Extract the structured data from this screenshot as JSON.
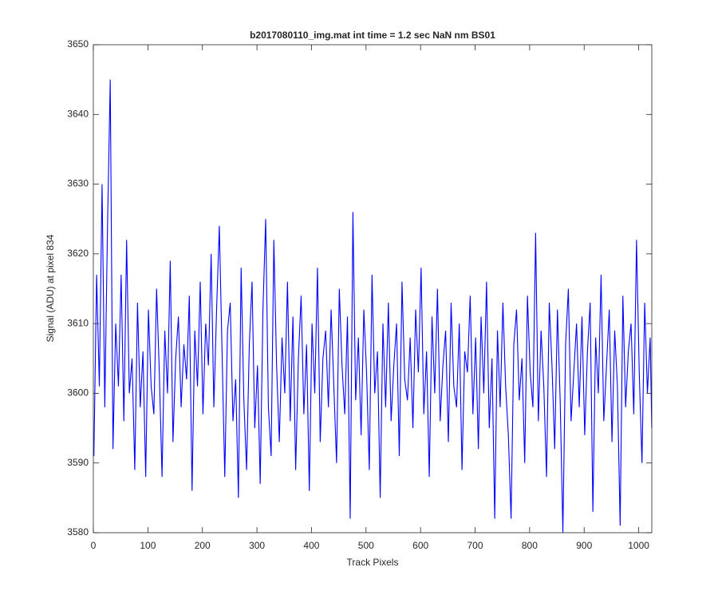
{
  "chart_data": {
    "type": "line",
    "title": "b2017080110_img.mat int time = 1.2 sec  NaN nm BS01",
    "xlabel": "Track Pixels",
    "ylabel": "Signal (ADU) at pixel 834",
    "xlim": [
      0,
      1024
    ],
    "ylim": [
      3580,
      3650
    ],
    "xticks": [
      0,
      100,
      200,
      300,
      400,
      500,
      600,
      700,
      800,
      900,
      1000
    ],
    "yticks": [
      3580,
      3590,
      3600,
      3610,
      3620,
      3630,
      3640,
      3650
    ],
    "x": [
      1,
      6,
      11,
      16,
      21,
      26,
      31,
      36,
      41,
      46,
      51,
      56,
      61,
      66,
      71,
      76,
      81,
      86,
      91,
      96,
      101,
      106,
      111,
      116,
      121,
      126,
      131,
      136,
      141,
      146,
      151,
      156,
      161,
      166,
      171,
      176,
      181,
      186,
      191,
      196,
      201,
      206,
      211,
      216,
      221,
      226,
      231,
      236,
      241,
      246,
      251,
      256,
      261,
      266,
      271,
      276,
      281,
      286,
      291,
      296,
      301,
      306,
      311,
      316,
      321,
      326,
      331,
      336,
      341,
      346,
      351,
      356,
      361,
      366,
      371,
      376,
      381,
      386,
      391,
      396,
      401,
      406,
      411,
      416,
      421,
      426,
      431,
      436,
      441,
      446,
      451,
      456,
      461,
      466,
      471,
      476,
      481,
      486,
      491,
      496,
      501,
      506,
      511,
      516,
      521,
      526,
      531,
      536,
      541,
      546,
      551,
      556,
      561,
      566,
      571,
      576,
      581,
      586,
      591,
      596,
      601,
      606,
      611,
      616,
      621,
      626,
      631,
      636,
      641,
      646,
      651,
      656,
      661,
      666,
      671,
      676,
      681,
      686,
      691,
      696,
      701,
      706,
      711,
      716,
      721,
      726,
      731,
      736,
      741,
      746,
      751,
      756,
      761,
      766,
      771,
      776,
      781,
      786,
      791,
      796,
      801,
      806,
      811,
      816,
      821,
      826,
      831,
      836,
      841,
      846,
      851,
      856,
      861,
      866,
      871,
      876,
      881,
      886,
      891,
      896,
      901,
      906,
      911,
      916,
      921,
      926,
      931,
      936,
      941,
      946,
      951,
      956,
      961,
      966,
      971,
      976,
      981,
      986,
      991,
      996,
      1001,
      1006,
      1011,
      1016,
      1021,
      1024
    ],
    "series": [
      {
        "name": "signal",
        "color": "#0000ff",
        "values": [
          3591,
          3617,
          3601,
          3630,
          3598,
          3624,
          3645,
          3592,
          3610,
          3601,
          3617,
          3596,
          3622,
          3600,
          3605,
          3589,
          3613,
          3598,
          3606,
          3588,
          3612,
          3601,
          3597,
          3615,
          3603,
          3588,
          3609,
          3600,
          3619,
          3593,
          3605,
          3611,
          3598,
          3607,
          3602,
          3614,
          3586,
          3609,
          3601,
          3616,
          3597,
          3610,
          3604,
          3620,
          3598,
          3612,
          3624,
          3606,
          3588,
          3609,
          3613,
          3596,
          3602,
          3585,
          3618,
          3599,
          3589,
          3607,
          3616,
          3595,
          3604,
          3587,
          3612,
          3625,
          3598,
          3591,
          3622,
          3604,
          3593,
          3608,
          3600,
          3616,
          3596,
          3611,
          3589,
          3605,
          3614,
          3597,
          3607,
          3586,
          3610,
          3600,
          3618,
          3593,
          3605,
          3609,
          3598,
          3612,
          3601,
          3590,
          3615,
          3604,
          3597,
          3611,
          3582,
          3626,
          3599,
          3608,
          3594,
          3612,
          3603,
          3589,
          3617,
          3600,
          3606,
          3585,
          3610,
          3598,
          3613,
          3596,
          3604,
          3610,
          3591,
          3616,
          3602,
          3599,
          3608,
          3595,
          3612,
          3603,
          3618,
          3597,
          3606,
          3588,
          3611,
          3600,
          3615,
          3596,
          3604,
          3609,
          3593,
          3613,
          3601,
          3598,
          3610,
          3589,
          3606,
          3603,
          3614,
          3597,
          3608,
          3592,
          3611,
          3600,
          3616,
          3595,
          3605,
          3582,
          3609,
          3598,
          3613,
          3601,
          3594,
          3582,
          3607,
          3612,
          3599,
          3605,
          3590,
          3614,
          3603,
          3598,
          3623,
          3596,
          3609,
          3601,
          3588,
          3613,
          3604,
          3592,
          3612,
          3599,
          3580,
          3607,
          3615,
          3596,
          3603,
          3610,
          3598,
          3611,
          3594,
          3606,
          3613,
          3583,
          3608,
          3600,
          3617,
          3596,
          3604,
          3612,
          3593,
          3609,
          3601,
          3581,
          3614,
          3598,
          3606,
          3610,
          3597,
          3622,
          3603,
          3590,
          3613,
          3600,
          3608,
          3595
        ]
      }
    ]
  }
}
